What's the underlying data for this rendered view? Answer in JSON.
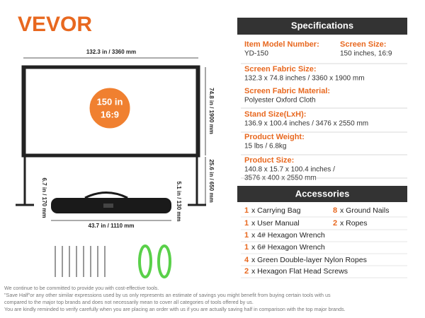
{
  "brand": "VEVOR",
  "badge": {
    "size": "150 in",
    "ratio": "16:9"
  },
  "dimensions": {
    "width": "132.3 in / 3360 mm",
    "height": "74.8 in / 1900 mm",
    "leg": "25.6 in / 650 mm",
    "bag_height": "6.7 in / 170 mm",
    "bag_length": "43.7 in / 1110 mm",
    "bag_depth": "5.1 in / 130 mm"
  },
  "specifications": {
    "title": "Specifications",
    "items": [
      {
        "label": "Item Model Number:",
        "value": [
          "YD-150"
        ]
      },
      {
        "label": "Screen Size:",
        "value": [
          "150 inches, 16:9"
        ]
      },
      {
        "label": "Screen Fabric Size:",
        "value": [
          "132.3 x 74.8 inches / 3360 x 1900 mm"
        ]
      },
      {
        "label": "Screen Fabric Material:",
        "value": [
          "Polyester Oxford Cloth"
        ]
      },
      {
        "label": "Stand Size(LxH):",
        "value": [
          "136.9 x 100.4 inches / 3476 x 2550 mm"
        ]
      },
      {
        "label": "Product Weight:",
        "value": [
          "15 lbs / 6.8kg"
        ]
      },
      {
        "label": "Product Size:",
        "value": [
          "140.8 x 15.7 x 100.4  inches /",
          "3576 x 400 x 2550 mm"
        ]
      }
    ]
  },
  "accessories": {
    "title": "Accessories",
    "items": [
      {
        "qty": "1",
        "name": "x Carrying Bag"
      },
      {
        "qty": "8",
        "name": "x Ground Nails"
      },
      {
        "qty": "1",
        "name": "x User Manual"
      },
      {
        "qty": "2",
        "name": "x Ropes"
      },
      {
        "qty": "1",
        "name": "x 4# Hexagon Wrench"
      },
      {
        "qty": "1",
        "name": "x 6# Hexagon Wrench"
      },
      {
        "qty": "4",
        "name": "x Green Double-layer Nylon Ropes"
      },
      {
        "qty": "2",
        "name": "x Hexagon Flat Head Screws"
      }
    ]
  },
  "footer": [
    "We continue to be committed to provide you with cost-effective tools.",
    "\"Save Half\"or any other similar expressions used by us only represents an estimate of savings you might benefit from buying certain tools with us",
    "compared to the major top brands and does not necessarily mean to cover all categories of tools offered by us.",
    "You are kindly reminded to verify carefully when you are placing an order with us if you are actually saving half in comparison with the top major brands."
  ]
}
